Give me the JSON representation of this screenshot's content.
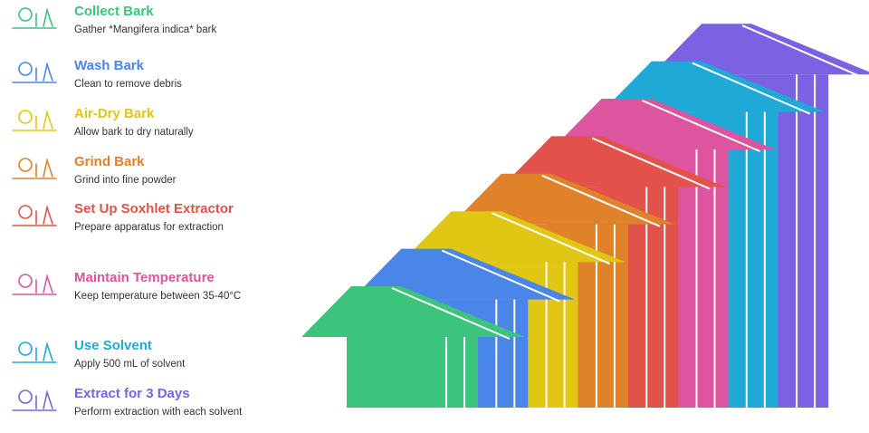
{
  "steps": [
    {
      "title": "Collect Bark",
      "description": "Gather *Mangifera indica* bark"
    },
    {
      "title": "Wash Bark",
      "description": "Clean to remove debris"
    },
    {
      "title": "Air-Dry Bark",
      "description": "Allow bark to dry naturally"
    },
    {
      "title": "Grind Bark",
      "description": "Grind into fine powder"
    },
    {
      "title": "Set Up Soxhlet Extractor",
      "description": "Prepare apparatus for extraction"
    },
    {
      "title": "Maintain Temperature",
      "description": "Keep temperature between 35-40°C"
    },
    {
      "title": "Use Solvent",
      "description": "Apply 500 mL of solvent"
    },
    {
      "title": "Extract for 3 Days",
      "description": "Perform extraction with each solvent"
    }
  ]
}
